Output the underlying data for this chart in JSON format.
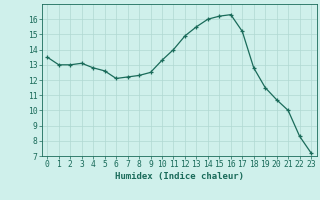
{
  "x": [
    0,
    1,
    2,
    3,
    4,
    5,
    6,
    7,
    8,
    9,
    10,
    11,
    12,
    13,
    14,
    15,
    16,
    17,
    18,
    19,
    20,
    21,
    22,
    23
  ],
  "y": [
    13.5,
    13.0,
    13.0,
    13.1,
    12.8,
    12.6,
    12.1,
    12.2,
    12.3,
    12.5,
    13.3,
    14.0,
    14.9,
    15.5,
    16.0,
    16.2,
    16.3,
    15.2,
    12.8,
    11.5,
    10.7,
    10.0,
    8.3,
    7.2
  ],
  "xlim": [
    -0.5,
    23.5
  ],
  "ylim": [
    7,
    17
  ],
  "yticks": [
    7,
    8,
    9,
    10,
    11,
    12,
    13,
    14,
    15,
    16
  ],
  "xticks": [
    0,
    1,
    2,
    3,
    4,
    5,
    6,
    7,
    8,
    9,
    10,
    11,
    12,
    13,
    14,
    15,
    16,
    17,
    18,
    19,
    20,
    21,
    22,
    23
  ],
  "xlabel": "Humidex (Indice chaleur)",
  "line_color": "#1a6b5a",
  "marker": "+",
  "bg_color": "#cff0eb",
  "grid_color": "#b0d8d2",
  "axes_color": "#1a6b5a",
  "label_fontsize": 6.5,
  "tick_fontsize": 5.8,
  "linewidth": 0.9,
  "markersize": 3.5,
  "markeredgewidth": 0.9
}
